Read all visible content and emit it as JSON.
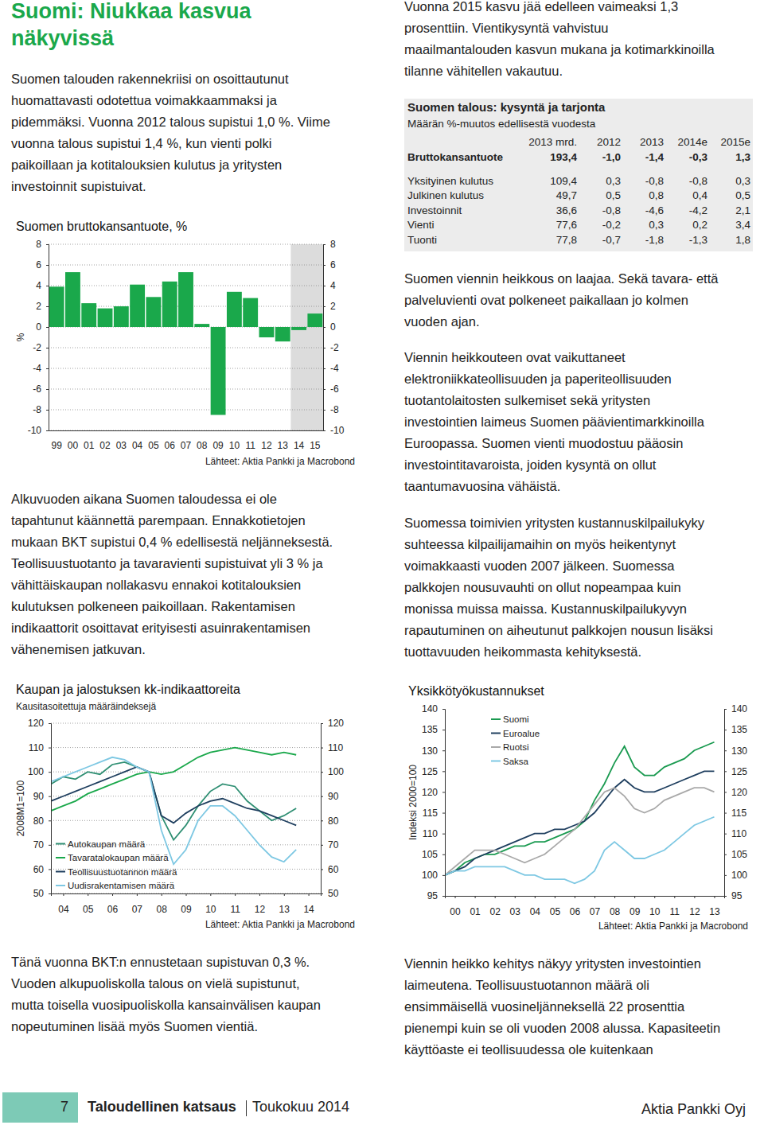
{
  "title": "Suomi: Niukkaa kasvua näkyvissä",
  "left_paragraphs": [
    [
      "Suomen talouden rakennekriisi on osoittautunut",
      "huomattavasti odotettua voimakkaammaksi ja",
      "pidemmäksi. Vuonna 2012 talous supistui 1,0 %. Viime",
      "vuonna talous supistui 1,4 %, kun vienti polki",
      "paikoillaan ja kotitalouksien kulutus ja yritysten",
      "investoinnit supistuivat."
    ],
    [
      "Alkuvuoden aikana Suomen taloudessa ei ole",
      "tapahtunut käännettä parempaan. Ennakkotietojen",
      "mukaan BKT supistui 0,4 % edellisestä neljänneksestä.",
      "Teollisuustuotanto ja tavaravienti supistuivat yli 3 % ja",
      "vähittäiskaupan nollakasvu ennakoi kotitalouksien",
      "kulutuksen polkeneen paikoillaan. Rakentamisen",
      "indikaattorit osoittavat erityisesti asuinrakentamisen",
      "vähenemisen jatkuvan."
    ],
    [
      "Tänä vuonna BKT:n ennustetaan supistuvan 0,3 %.",
      "Vuoden alkupuoliskolla talous on vielä supistunut,",
      "mutta toisella vuosipuoliskolla kansainvälisen kaupan",
      "nopeutuminen lisää myös Suomen vientiä."
    ]
  ],
  "right_paragraphs": [
    [
      "Vuonna 2015 kasvu jää edelleen vaimeaksi 1,3",
      "prosenttiin. Vientikysyntä vahvistuu",
      "maailmantalouden kasvun mukana ja kotimarkkinoilla",
      "tilanne vähitellen vakautuu."
    ],
    [
      "Suomen viennin heikkous on laajaa. Sekä tavara- että",
      "palveluvienti ovat polkeneet paikallaan jo kolmen",
      "vuoden ajan."
    ],
    [
      "Viennin heikkouteen ovat vaikuttaneet",
      "elektroniikkateollisuuden ja paperiteollisuuden",
      "tuotantolaitosten sulkemiset sekä yritysten",
      "investointien laimeus Suomen päävientimarkkinoilla",
      "Euroopassa. Suomen vienti muodostuu pääosin",
      "investointitavaroista, joiden kysyntä on ollut",
      "taantumavuosina vähäistä."
    ],
    [
      "Suomessa toimivien yritysten kustannuskilpailukyky",
      "suhteessa kilpailijamaihin on myös heikentynyt",
      "voimakkaasti vuoden 2007 jälkeen. Suomessa",
      "palkkojen nousuvauhti on ollut nopeampaa kuin",
      "monissa muissa maissa. Kustannuskilpailukyvyn",
      "rapautuminen on aiheutunut palkkojen nousun lisäksi",
      "tuottavuuden heikommasta kehityksestä."
    ],
    [
      "Viennin heikko kehitys näkyy yritysten investointien",
      "laimeutena. Teollisuustuotannon määrä oli",
      "ensimmäisellä vuosineljänneksellä 22 prosenttia",
      "pienempi kuin se oli vuoden 2008 alussa. Kapasiteetin",
      "käyttöaste ei teollisuudessa ole kuitenkaan"
    ]
  ],
  "table": {
    "title": "Suomen talous: kysyntä ja tarjonta",
    "subtitle": "Määrän %-muutos edellisestä vuodesta",
    "header": [
      "2013 mrd.",
      "2012",
      "2013",
      "2014e",
      "2015e"
    ],
    "rows": [
      {
        "label": "Bruttokansantuote",
        "values": [
          "193,4",
          "-1,0",
          "-1,4",
          "-0,3",
          "1,3"
        ]
      },
      {
        "label": "Yksityinen kulutus",
        "values": [
          "109,4",
          "0,3",
          "-0,8",
          "-0,8",
          "0,3"
        ]
      },
      {
        "label": "Julkinen kulutus",
        "values": [
          "49,7",
          "0,5",
          "0,8",
          "0,4",
          "0,5"
        ]
      },
      {
        "label": "Investoinnit",
        "values": [
          "36,6",
          "-0,8",
          "-4,6",
          "-4,2",
          "2,1"
        ]
      },
      {
        "label": "Vienti",
        "values": [
          "77,6",
          "-0,2",
          "0,3",
          "0,2",
          "3,4"
        ]
      },
      {
        "label": "Tuonti",
        "values": [
          "77,8",
          "-0,7",
          "-1,8",
          "-1,3",
          "1,8"
        ]
      }
    ]
  },
  "chart_data": [
    {
      "type": "bar",
      "title": "Suomen bruttokansantuote, %",
      "y_label": "%",
      "source": "Lähteet: Aktia Pankki ja Macrobond",
      "categories": [
        "99",
        "00",
        "01",
        "02",
        "03",
        "04",
        "05",
        "06",
        "07",
        "08",
        "09",
        "10",
        "11",
        "12",
        "13",
        "14",
        "15"
      ],
      "values": [
        3.9,
        5.3,
        2.3,
        1.8,
        2.0,
        4.1,
        2.9,
        4.4,
        5.3,
        0.3,
        -8.5,
        3.4,
        2.8,
        -1.0,
        -1.4,
        -0.3,
        1.3
      ],
      "color": "#1aa84b",
      "ylim": [
        -10,
        8
      ],
      "yticks": [
        -10,
        -8,
        -6,
        -4,
        -2,
        0,
        2,
        4,
        6,
        8
      ],
      "grid": true
    },
    {
      "type": "line",
      "title": "Kaupan ja jalostuksen kk-indikaattoreita",
      "subtitle": "Kausitasoitettuja määräindeksejä",
      "y_label": "2008M1=100",
      "source": "Lähteet: Aktia Pankki ja Macrobond",
      "x": [
        2004,
        2004.5,
        2005,
        2005.5,
        2006,
        2006.5,
        2007,
        2007.5,
        2008,
        2008.5,
        2009,
        2009.5,
        2010,
        2010.5,
        2011,
        2011.5,
        2012,
        2012.5,
        2013,
        2013.5,
        2014
      ],
      "xlim": [
        2004,
        2015
      ],
      "xticks": [
        {
          "value": 2004.5,
          "label": "04"
        },
        {
          "value": 2005.5,
          "label": "05"
        },
        {
          "value": 2006.5,
          "label": "06"
        },
        {
          "value": 2007.5,
          "label": "07"
        },
        {
          "value": 2008.5,
          "label": "08"
        },
        {
          "value": 2009.5,
          "label": "09"
        },
        {
          "value": 2010.5,
          "label": "10"
        },
        {
          "value": 2011.5,
          "label": "11"
        },
        {
          "value": 2012.5,
          "label": "12"
        },
        {
          "value": 2013.5,
          "label": "13"
        },
        {
          "value": 2014.5,
          "label": "14"
        }
      ],
      "ylim": [
        50,
        120
      ],
      "yticks": [
        50,
        60,
        70,
        80,
        90,
        100,
        110,
        120
      ],
      "grid": true,
      "legend": "lower left",
      "series": [
        {
          "name": "Autokaupan määrä",
          "color": "#2f8f73",
          "values": [
            95,
            98,
            97,
            100,
            99,
            103,
            104,
            102,
            100,
            82,
            72,
            78,
            86,
            92,
            95,
            94,
            88,
            84,
            80,
            82,
            85
          ]
        },
        {
          "name": "Tavaratalokaupan määrä",
          "color": "#1aa84b",
          "values": [
            84,
            86,
            88,
            91,
            93,
            95,
            97,
            99,
            100,
            99,
            100,
            103,
            106,
            108,
            109,
            110,
            109,
            108,
            107,
            108,
            107
          ]
        },
        {
          "name": "Teollisuustuotannon määrä",
          "color": "#1f3f5f",
          "values": [
            88,
            90,
            92,
            94,
            96,
            98,
            100,
            102,
            100,
            82,
            79,
            83,
            86,
            88,
            89,
            87,
            85,
            84,
            82,
            80,
            78
          ]
        },
        {
          "name": "Uudisrakentamisen määrä",
          "color": "#7ec8e3",
          "values": [
            96,
            98,
            100,
            102,
            104,
            106,
            105,
            102,
            100,
            76,
            62,
            68,
            80,
            86,
            86,
            82,
            76,
            70,
            65,
            63,
            68
          ]
        }
      ]
    },
    {
      "type": "line",
      "title": "Yksikkötyökustannukset",
      "y_label": "Indeksi 2000=100",
      "source": "Lähteet: Aktia Pankki ja Macrobond",
      "x": [
        2000,
        2000.5,
        2001,
        2001.5,
        2002,
        2002.5,
        2003,
        2003.5,
        2004,
        2004.5,
        2005,
        2005.5,
        2006,
        2006.5,
        2007,
        2007.5,
        2008,
        2008.5,
        2009,
        2009.5,
        2010,
        2010.5,
        2011,
        2011.5,
        2012,
        2012.5,
        2013,
        2013.5
      ],
      "xlim": [
        2000,
        2014
      ],
      "xticks": [
        {
          "value": 2000.5,
          "label": "00"
        },
        {
          "value": 2001.5,
          "label": "01"
        },
        {
          "value": 2002.5,
          "label": "02"
        },
        {
          "value": 2003.5,
          "label": "03"
        },
        {
          "value": 2004.5,
          "label": "04"
        },
        {
          "value": 2005.5,
          "label": "05"
        },
        {
          "value": 2006.5,
          "label": "06"
        },
        {
          "value": 2007.5,
          "label": "07"
        },
        {
          "value": 2008.5,
          "label": "08"
        },
        {
          "value": 2009.5,
          "label": "09"
        },
        {
          "value": 2010.5,
          "label": "10"
        },
        {
          "value": 2011.5,
          "label": "11"
        },
        {
          "value": 2012.5,
          "label": "12"
        },
        {
          "value": 2013.5,
          "label": "13"
        }
      ],
      "ylim": [
        95,
        140
      ],
      "yticks": [
        95,
        100,
        105,
        110,
        115,
        120,
        125,
        130,
        135,
        140
      ],
      "grid": false,
      "legend": "upper left",
      "series": [
        {
          "name": "Suomi",
          "color": "#1a9a50",
          "values": [
            100,
            101,
            103,
            104,
            105,
            105,
            106,
            107,
            107,
            108,
            108,
            109,
            110,
            111,
            113,
            118,
            122,
            127,
            131,
            126,
            124,
            124,
            126,
            127,
            128,
            130,
            131,
            132
          ]
        },
        {
          "name": "Euroalue",
          "color": "#1f3f5f",
          "values": [
            100,
            101,
            102,
            104,
            105,
            106,
            107,
            108,
            109,
            110,
            110,
            111,
            111,
            112,
            113,
            115,
            118,
            121,
            123,
            121,
            120,
            120,
            121,
            122,
            123,
            124,
            125,
            125
          ]
        },
        {
          "name": "Ruotsi",
          "color": "#a9a9a9",
          "values": [
            100,
            102,
            104,
            106,
            106,
            106,
            105,
            104,
            103,
            104,
            105,
            107,
            109,
            111,
            114,
            117,
            120,
            121,
            119,
            116,
            115,
            116,
            118,
            119,
            120,
            121,
            121,
            120
          ]
        },
        {
          "name": "Saksa",
          "color": "#7ec8e3",
          "values": [
            100,
            101,
            101,
            102,
            102,
            102,
            102,
            101,
            100,
            100,
            99,
            99,
            99,
            98,
            99,
            101,
            106,
            108,
            106,
            104,
            104,
            105,
            106,
            108,
            110,
            112,
            113,
            114
          ]
        }
      ]
    }
  ],
  "footer": {
    "page": "7",
    "publication": "Taloudellinen katsaus",
    "date": "Toukokuu 2014",
    "publisher": "Aktia Pankki Oyj"
  }
}
